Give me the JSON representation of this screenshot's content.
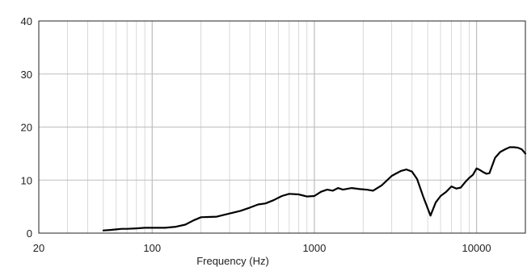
{
  "chart_data": {
    "type": "line",
    "title": "",
    "xlabel": "Frequency (Hz)",
    "ylabel": "",
    "xscale": "log",
    "xlim": [
      20,
      20000
    ],
    "ylim": [
      0,
      40
    ],
    "grid": true,
    "x_ticks": [
      {
        "value": 20,
        "label": "20"
      },
      {
        "value": 100,
        "label": "100"
      },
      {
        "value": 1000,
        "label": "1000"
      },
      {
        "value": 10000,
        "label": "10000"
      }
    ],
    "y_ticks": [
      {
        "value": 0,
        "label": "0"
      },
      {
        "value": 10,
        "label": "10"
      },
      {
        "value": 20,
        "label": "20"
      },
      {
        "value": 30,
        "label": "30"
      },
      {
        "value": 40,
        "label": "40"
      }
    ],
    "line_color": "#000000",
    "grid_color": "#d0d0d0",
    "series": [
      {
        "x": [
          50,
          55,
          60,
          65,
          70,
          80,
          90,
          100,
          120,
          140,
          160,
          180,
          200,
          250,
          300,
          350,
          400,
          450,
          500,
          560,
          630,
          700,
          800,
          900,
          1000,
          1100,
          1200,
          1300,
          1400,
          1500,
          1700,
          1900,
          2100,
          2300,
          2600,
          3000,
          3400,
          3700,
          4000,
          4300,
          4700,
          5200,
          5600,
          6000,
          6500,
          7000,
          7500,
          8000,
          8500,
          9000,
          9500,
          10000,
          10500,
          11000,
          11500,
          12000,
          13000,
          14000,
          15000,
          16000,
          17000,
          18000,
          19000,
          20000
        ],
        "y": [
          0.5,
          0.6,
          0.7,
          0.8,
          0.8,
          0.9,
          1.0,
          1.0,
          1.0,
          1.2,
          1.6,
          2.4,
          3.0,
          3.1,
          3.7,
          4.2,
          4.8,
          5.4,
          5.6,
          6.2,
          7.0,
          7.4,
          7.3,
          6.9,
          7.0,
          7.8,
          8.2,
          8.0,
          8.5,
          8.2,
          8.5,
          8.3,
          8.2,
          8.0,
          9.0,
          10.8,
          11.7,
          12.0,
          11.6,
          10.2,
          6.8,
          3.3,
          5.8,
          7.0,
          7.8,
          8.8,
          8.4,
          8.6,
          9.6,
          10.4,
          11.0,
          12.2,
          11.9,
          11.5,
          11.2,
          11.3,
          14.2,
          15.3,
          15.8,
          16.2,
          16.2,
          16.1,
          15.8,
          15.0
        ]
      }
    ]
  }
}
